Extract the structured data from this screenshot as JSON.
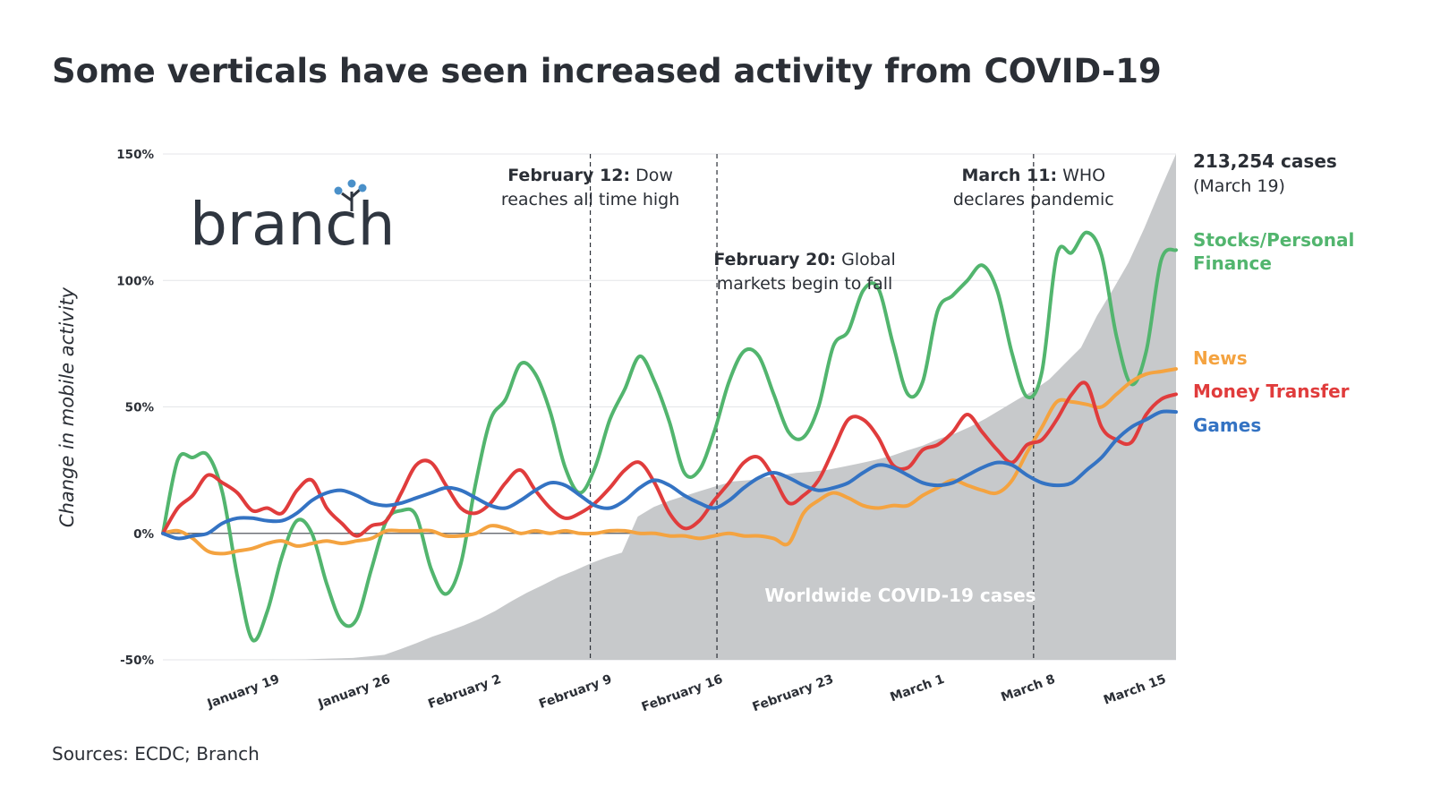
{
  "title": "Some verticals have seen increased activity from COVID-19",
  "source": "Sources: ECDC; Branch",
  "logo": {
    "text": "branch",
    "icon": "branch-tree-icon",
    "icon_color": "#4a90c9"
  },
  "chart_data": {
    "type": "line",
    "ylabel": "Change in mobile activity",
    "ylim": [
      -50,
      150
    ],
    "yticks": [
      {
        "value": -50,
        "label": "-50%"
      },
      {
        "value": 0,
        "label": "0%"
      },
      {
        "value": 50,
        "label": "50%"
      },
      {
        "value": 100,
        "label": "100%"
      },
      {
        "value": 150,
        "label": "150%"
      }
    ],
    "xlim": [
      0,
      64
    ],
    "xtick_labels": [
      {
        "day": 6,
        "label": "January 19"
      },
      {
        "day": 13,
        "label": "January 26"
      },
      {
        "day": 20,
        "label": "February 2"
      },
      {
        "day": 27,
        "label": "February 9"
      },
      {
        "day": 34,
        "label": "February 16"
      },
      {
        "day": 41,
        "label": "February 23"
      },
      {
        "day": 48,
        "label": "March 1"
      },
      {
        "day": 55,
        "label": "March 8"
      },
      {
        "day": 62,
        "label": "March 15"
      }
    ],
    "grid": "horizontal",
    "series": [
      {
        "name": "Stocks/Personal Finance",
        "label_line1": "Stocks/Personal",
        "label_line2": "Finance",
        "color": "#52b56e",
        "values": [
          0,
          29,
          30,
          31,
          16,
          -17,
          -42,
          -31,
          -9,
          5,
          0,
          -20,
          -35,
          -34,
          -14,
          5,
          9,
          7,
          -14,
          -24,
          -12,
          20,
          45,
          53,
          67,
          63,
          48,
          26,
          16,
          26,
          45,
          57,
          70,
          60,
          44,
          24,
          25,
          40,
          60,
          72,
          70,
          55,
          40,
          38,
          50,
          74,
          80,
          96,
          97,
          75,
          55,
          60,
          88,
          94,
          100,
          106,
          96,
          71,
          54,
          64,
          110,
          111,
          119,
          110,
          78,
          59,
          72,
          108,
          112
        ]
      },
      {
        "name": "News",
        "label_line1": "News",
        "color": "#f4a340",
        "values": [
          0,
          1,
          -2,
          -7,
          -8,
          -7,
          -6,
          -4,
          -3,
          -5,
          -4,
          -3,
          -4,
          -3,
          -2,
          1,
          1,
          1,
          1,
          -1,
          -1,
          0,
          3,
          2,
          0,
          1,
          0,
          1,
          0,
          0,
          1,
          1,
          0,
          0,
          -1,
          -1,
          -2,
          -1,
          0,
          -1,
          -1,
          -2,
          -4,
          8,
          13,
          16,
          14,
          11,
          10,
          11,
          11,
          15,
          18,
          21,
          19,
          17,
          16,
          21,
          32,
          42,
          52,
          52,
          51,
          50,
          55,
          60,
          63,
          64,
          65
        ]
      },
      {
        "name": "Money Transfer",
        "label_line1": "Money Transfer",
        "color": "#e03c3c",
        "values": [
          0,
          10,
          15,
          23,
          20,
          16,
          9,
          10,
          8,
          17,
          21,
          10,
          4,
          -1,
          3,
          5,
          16,
          27,
          28,
          19,
          10,
          8,
          12,
          20,
          25,
          17,
          10,
          6,
          8,
          12,
          18,
          25,
          28,
          20,
          8,
          2,
          5,
          13,
          20,
          28,
          30,
          22,
          12,
          15,
          21,
          33,
          45,
          45,
          38,
          27,
          26,
          33,
          35,
          40,
          47,
          40,
          33,
          28,
          35,
          37,
          45,
          55,
          59,
          42,
          37,
          36,
          47,
          53,
          55
        ]
      },
      {
        "name": "Games",
        "label_line1": "Games",
        "color": "#3473c3",
        "values": [
          0,
          -2,
          -1,
          0,
          4,
          6,
          6,
          5,
          5,
          8,
          13,
          16,
          17,
          15,
          12,
          11,
          12,
          14,
          16,
          18,
          17,
          14,
          11,
          10,
          13,
          17,
          20,
          19,
          15,
          11,
          10,
          13,
          18,
          21,
          19,
          15,
          12,
          10,
          13,
          18,
          22,
          24,
          22,
          19,
          17,
          18,
          20,
          24,
          27,
          26,
          23,
          20,
          19,
          20,
          23,
          26,
          28,
          27,
          23,
          20,
          19,
          20,
          25,
          30,
          37,
          42,
          45,
          48,
          48
        ]
      }
    ],
    "cases_area": {
      "label": "Worldwide COVID-19 cases",
      "color": "#c7c9cb",
      "max_label": "213,254 cases",
      "max_sublabel": "(March 19)",
      "values": [
        0,
        1,
        3,
        5,
        10,
        20,
        40,
        60,
        100,
        200,
        400,
        600,
        800,
        1400,
        2100,
        4500,
        7000,
        9700,
        12000,
        14500,
        17300,
        20600,
        24600,
        28300,
        31500,
        34900,
        37600,
        40600,
        43100,
        45200,
        60400,
        64400,
        67100,
        69200,
        71300,
        73300,
        75200,
        75700,
        76800,
        77800,
        78800,
        79300,
        80100,
        81400,
        82800,
        84300,
        85900,
        88200,
        90300,
        93100,
        95300,
        98300,
        101800,
        105800,
        109800,
        113500,
        118300,
        125000,
        131700,
        145000,
        156000,
        167500,
        182000,
        198000,
        213254
      ]
    },
    "annotations": [
      {
        "day": 27,
        "bold": "February 12:",
        "text_rest": " Dow",
        "line2": "reaches all time high"
      },
      {
        "day": 35,
        "bold": "February 20:",
        "text_rest": " Global",
        "line2": "markets begin to fall"
      },
      {
        "day": 55,
        "bold": "March 11:",
        "text_rest": " WHO",
        "line2": "declares pandemic"
      }
    ]
  }
}
